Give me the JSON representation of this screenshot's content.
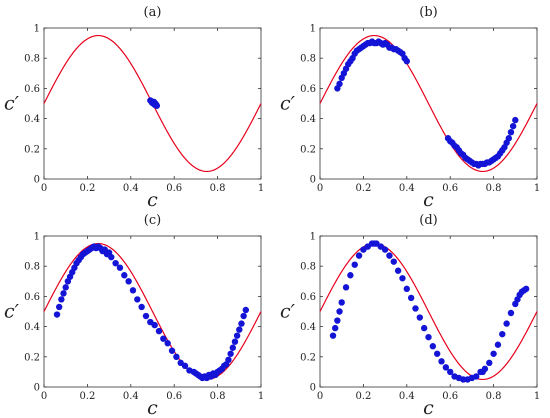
{
  "figure": {
    "panel_titles": [
      "(a)",
      "(b)",
      "(c)",
      "(d)"
    ],
    "xlabel": "c",
    "ylabel": "c′"
  },
  "chart_data": [
    {
      "type": "scatter",
      "title": "(a)",
      "xlabel": "c",
      "ylabel": "c′",
      "xlim": [
        0,
        1
      ],
      "ylim": [
        0,
        1
      ],
      "xticks": [
        "0",
        "0.2",
        "0.4",
        "0.6",
        "0.8",
        "1"
      ],
      "yticks": [
        "0",
        "0.2",
        "0.4",
        "0.6",
        "0.8",
        "1"
      ],
      "curve": {
        "color": "#e8001c",
        "formula": "c' = 0.5 + 0.45*sin(2*pi*c)"
      },
      "points": {
        "color": "#1414d6",
        "x": [
          0.49,
          0.495,
          0.5,
          0.502,
          0.505,
          0.508,
          0.51,
          0.512,
          0.515,
          0.518,
          0.52,
          0.498,
          0.507,
          0.513
        ],
        "y": [
          0.52,
          0.515,
          0.51,
          0.505,
          0.5,
          0.495,
          0.5,
          0.49,
          0.495,
          0.49,
          0.485,
          0.505,
          0.51,
          0.5
        ]
      }
    },
    {
      "type": "scatter",
      "title": "(b)",
      "xlabel": "c",
      "ylabel": "c′",
      "xlim": [
        0,
        1
      ],
      "ylim": [
        0,
        1
      ],
      "xticks": [
        "0",
        "0.2",
        "0.4",
        "0.6",
        "0.8",
        "1"
      ],
      "yticks": [
        "0",
        "0.2",
        "0.4",
        "0.6",
        "0.8",
        "1"
      ],
      "curve": {
        "color": "#e8001c",
        "formula": "c' = 0.5 + 0.45*sin(2*pi*c)"
      },
      "points": {
        "color": "#1414d6",
        "x": [
          0.08,
          0.09,
          0.1,
          0.11,
          0.12,
          0.13,
          0.14,
          0.15,
          0.16,
          0.17,
          0.18,
          0.19,
          0.2,
          0.21,
          0.22,
          0.23,
          0.24,
          0.25,
          0.26,
          0.27,
          0.28,
          0.29,
          0.3,
          0.31,
          0.32,
          0.33,
          0.34,
          0.35,
          0.36,
          0.37,
          0.38,
          0.39,
          0.4,
          0.59,
          0.6,
          0.61,
          0.62,
          0.63,
          0.64,
          0.65,
          0.66,
          0.67,
          0.68,
          0.69,
          0.7,
          0.71,
          0.72,
          0.73,
          0.74,
          0.75,
          0.76,
          0.77,
          0.78,
          0.79,
          0.8,
          0.81,
          0.82,
          0.83,
          0.84,
          0.85,
          0.86,
          0.87,
          0.88,
          0.89,
          0.9
        ],
        "y": [
          0.6,
          0.63,
          0.67,
          0.7,
          0.73,
          0.76,
          0.78,
          0.8,
          0.83,
          0.85,
          0.86,
          0.87,
          0.88,
          0.89,
          0.9,
          0.9,
          0.91,
          0.9,
          0.9,
          0.91,
          0.9,
          0.89,
          0.9,
          0.89,
          0.87,
          0.87,
          0.86,
          0.86,
          0.85,
          0.84,
          0.83,
          0.8,
          0.78,
          0.27,
          0.25,
          0.24,
          0.22,
          0.21,
          0.19,
          0.17,
          0.16,
          0.14,
          0.13,
          0.12,
          0.11,
          0.1,
          0.1,
          0.09,
          0.1,
          0.1,
          0.1,
          0.11,
          0.11,
          0.12,
          0.13,
          0.14,
          0.15,
          0.17,
          0.19,
          0.21,
          0.24,
          0.27,
          0.31,
          0.35,
          0.39
        ]
      }
    },
    {
      "type": "scatter",
      "title": "(c)",
      "xlabel": "c",
      "ylabel": "c′",
      "xlim": [
        0,
        1
      ],
      "ylim": [
        0,
        1
      ],
      "xticks": [
        "0",
        "0.2",
        "0.4",
        "0.6",
        "0.8",
        "1"
      ],
      "yticks": [
        "0",
        "0.2",
        "0.4",
        "0.6",
        "0.8",
        "1"
      ],
      "curve": {
        "color": "#e8001c",
        "formula": "c' = 0.5 + 0.45*sin(2*pi*c)"
      },
      "points": {
        "color": "#1414d6",
        "x": [
          0.06,
          0.07,
          0.08,
          0.09,
          0.1,
          0.11,
          0.12,
          0.13,
          0.14,
          0.15,
          0.16,
          0.17,
          0.18,
          0.19,
          0.2,
          0.21,
          0.22,
          0.23,
          0.24,
          0.25,
          0.26,
          0.27,
          0.28,
          0.29,
          0.3,
          0.31,
          0.33,
          0.35,
          0.37,
          0.39,
          0.41,
          0.43,
          0.45,
          0.47,
          0.49,
          0.51,
          0.53,
          0.55,
          0.57,
          0.59,
          0.61,
          0.63,
          0.65,
          0.67,
          0.69,
          0.7,
          0.71,
          0.72,
          0.73,
          0.74,
          0.75,
          0.76,
          0.77,
          0.78,
          0.79,
          0.8,
          0.81,
          0.82,
          0.83,
          0.84,
          0.85,
          0.86,
          0.87,
          0.88,
          0.89,
          0.9,
          0.91,
          0.92,
          0.93
        ],
        "y": [
          0.48,
          0.53,
          0.58,
          0.62,
          0.66,
          0.7,
          0.73,
          0.76,
          0.79,
          0.82,
          0.84,
          0.86,
          0.88,
          0.89,
          0.9,
          0.91,
          0.92,
          0.93,
          0.92,
          0.93,
          0.92,
          0.9,
          0.91,
          0.88,
          0.89,
          0.86,
          0.82,
          0.79,
          0.74,
          0.7,
          0.64,
          0.58,
          0.53,
          0.47,
          0.43,
          0.41,
          0.37,
          0.32,
          0.29,
          0.24,
          0.2,
          0.16,
          0.14,
          0.11,
          0.1,
          0.09,
          0.08,
          0.07,
          0.06,
          0.07,
          0.06,
          0.08,
          0.07,
          0.09,
          0.08,
          0.1,
          0.11,
          0.12,
          0.14,
          0.15,
          0.18,
          0.22,
          0.26,
          0.3,
          0.34,
          0.38,
          0.42,
          0.47,
          0.51
        ]
      }
    },
    {
      "type": "scatter",
      "title": "(d)",
      "xlabel": "c",
      "ylabel": "c′",
      "xlim": [
        0,
        1
      ],
      "ylim": [
        0,
        1
      ],
      "xticks": [
        "0",
        "0.2",
        "0.4",
        "0.6",
        "0.8",
        "1"
      ],
      "yticks": [
        "0",
        "0.2",
        "0.4",
        "0.6",
        "0.8",
        "1"
      ],
      "curve": {
        "color": "#e8001c",
        "formula": "c' = 0.5 + 0.45*sin(2*pi*c)"
      },
      "points": {
        "color": "#1414d6",
        "x": [
          0.06,
          0.07,
          0.08,
          0.09,
          0.1,
          0.12,
          0.14,
          0.16,
          0.18,
          0.2,
          0.22,
          0.24,
          0.25,
          0.26,
          0.28,
          0.3,
          0.32,
          0.34,
          0.36,
          0.38,
          0.4,
          0.42,
          0.44,
          0.46,
          0.48,
          0.5,
          0.52,
          0.54,
          0.56,
          0.58,
          0.6,
          0.62,
          0.64,
          0.66,
          0.68,
          0.7,
          0.72,
          0.74,
          0.75,
          0.76,
          0.78,
          0.8,
          0.82,
          0.84,
          0.86,
          0.88,
          0.9,
          0.91,
          0.92,
          0.93,
          0.94,
          0.95
        ],
        "y": [
          0.34,
          0.39,
          0.44,
          0.5,
          0.56,
          0.66,
          0.74,
          0.81,
          0.87,
          0.91,
          0.93,
          0.95,
          0.95,
          0.95,
          0.93,
          0.91,
          0.87,
          0.83,
          0.77,
          0.72,
          0.65,
          0.59,
          0.52,
          0.46,
          0.39,
          0.33,
          0.27,
          0.22,
          0.17,
          0.13,
          0.1,
          0.07,
          0.06,
          0.05,
          0.05,
          0.06,
          0.07,
          0.1,
          0.1,
          0.12,
          0.16,
          0.22,
          0.28,
          0.35,
          0.42,
          0.49,
          0.55,
          0.58,
          0.61,
          0.63,
          0.64,
          0.65
        ]
      }
    }
  ]
}
